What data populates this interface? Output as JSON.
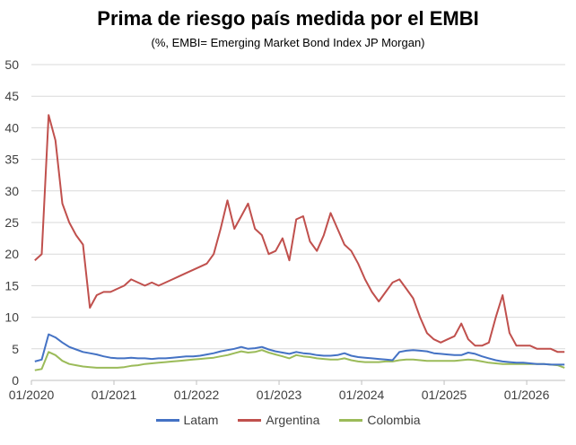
{
  "chart_data": {
    "type": "line",
    "title": "Prima de riesgo país medida por el EMBI",
    "subtitle": "(%, EMBI= Emerging Market Bond Index JP Morgan)",
    "xlabel": "",
    "ylabel": "",
    "ylim": [
      0,
      50
    ],
    "y_ticks": [
      "0",
      "5",
      "10",
      "15",
      "20",
      "25",
      "30",
      "35",
      "40",
      "45",
      "50"
    ],
    "x_ticks": [
      "01/2020",
      "01/2021",
      "01/2022",
      "01/2023",
      "01/2024",
      "01/2025",
      "01/2026"
    ],
    "grid": true,
    "legend_position": "bottom",
    "x_dates": [
      "2020-01",
      "2020-02",
      "2020-03",
      "2020-04",
      "2020-05",
      "2020-06",
      "2020-07",
      "2020-08",
      "2020-09",
      "2020-10",
      "2020-11",
      "2020-12",
      "2021-01",
      "2021-02",
      "2021-03",
      "2021-04",
      "2021-05",
      "2021-06",
      "2021-07",
      "2021-08",
      "2021-09",
      "2021-10",
      "2021-11",
      "2021-12",
      "2022-01",
      "2022-02",
      "2022-03",
      "2022-04",
      "2022-05",
      "2022-06",
      "2022-07",
      "2022-08",
      "2022-09",
      "2022-10",
      "2022-11",
      "2022-12",
      "2023-01",
      "2023-02",
      "2023-03",
      "2023-04",
      "2023-05",
      "2023-06",
      "2023-07",
      "2023-08",
      "2023-09",
      "2023-10",
      "2023-11",
      "2023-12",
      "2024-01",
      "2024-02",
      "2024-03",
      "2024-04",
      "2024-05",
      "2024-06",
      "2024-07",
      "2024-08",
      "2024-09",
      "2024-10",
      "2024-11",
      "2024-12",
      "2025-01",
      "2025-02",
      "2025-03",
      "2025-04",
      "2025-05",
      "2025-06",
      "2025-07",
      "2025-08",
      "2025-09",
      "2025-10",
      "2025-11",
      "2025-12",
      "2026-01",
      "2026-02",
      "2026-03",
      "2026-04",
      "2026-05",
      "2026-06"
    ],
    "series": [
      {
        "name": "Latam",
        "color": "#4472C4",
        "values": [
          3.0,
          3.3,
          7.3,
          6.8,
          6.0,
          5.3,
          4.9,
          4.5,
          4.3,
          4.1,
          3.8,
          3.6,
          3.5,
          3.5,
          3.6,
          3.5,
          3.5,
          3.4,
          3.5,
          3.5,
          3.6,
          3.7,
          3.8,
          3.8,
          3.9,
          4.1,
          4.3,
          4.6,
          4.8,
          5.0,
          5.3,
          5.0,
          5.1,
          5.3,
          4.9,
          4.6,
          4.4,
          4.2,
          4.5,
          4.3,
          4.2,
          4.0,
          3.9,
          3.9,
          4.0,
          4.3,
          3.9,
          3.7,
          3.6,
          3.5,
          3.4,
          3.3,
          3.2,
          4.5,
          4.7,
          4.8,
          4.7,
          4.6,
          4.3,
          4.2,
          4.1,
          4.0,
          4.0,
          4.4,
          4.2,
          3.8,
          3.5,
          3.2,
          3.0,
          2.9,
          2.8,
          2.8,
          2.7,
          2.6,
          2.6,
          2.5,
          2.5,
          2.5
        ]
      },
      {
        "name": "Argentina",
        "color": "#C0504D",
        "values": [
          19.0,
          20.0,
          42.0,
          38.0,
          28.0,
          25.0,
          23.0,
          21.5,
          11.5,
          13.5,
          14.0,
          14.0,
          14.5,
          15.0,
          16.0,
          15.5,
          15.0,
          15.5,
          15.0,
          15.5,
          16.0,
          16.5,
          17.0,
          17.5,
          18.0,
          18.5,
          20.0,
          24.0,
          28.5,
          24.0,
          26.0,
          28.0,
          24.0,
          23.0,
          20.0,
          20.5,
          22.5,
          19.0,
          25.5,
          26.0,
          22.0,
          20.5,
          23.0,
          26.5,
          24.0,
          21.5,
          20.5,
          18.5,
          16.0,
          14.0,
          12.5,
          14.0,
          15.5,
          16.0,
          14.5,
          13.0,
          10.0,
          7.5,
          6.5,
          6.0,
          6.5,
          7.0,
          9.0,
          6.5,
          5.5,
          5.5,
          6.0,
          10.0,
          13.5,
          7.5,
          5.5,
          5.5,
          5.5,
          5.0,
          5.0,
          5.0,
          4.5,
          4.5
        ]
      },
      {
        "name": "Colombia",
        "color": "#9BBB59",
        "values": [
          1.6,
          1.8,
          4.5,
          4.0,
          3.1,
          2.6,
          2.4,
          2.2,
          2.1,
          2.0,
          2.0,
          2.0,
          2.0,
          2.1,
          2.3,
          2.4,
          2.6,
          2.7,
          2.8,
          2.9,
          3.0,
          3.1,
          3.2,
          3.3,
          3.4,
          3.5,
          3.6,
          3.8,
          4.0,
          4.3,
          4.6,
          4.4,
          4.5,
          4.8,
          4.4,
          4.1,
          3.8,
          3.5,
          4.0,
          3.8,
          3.7,
          3.5,
          3.4,
          3.3,
          3.3,
          3.5,
          3.2,
          3.0,
          2.9,
          2.9,
          2.9,
          3.0,
          3.0,
          3.2,
          3.3,
          3.3,
          3.2,
          3.1,
          3.1,
          3.1,
          3.1,
          3.1,
          3.2,
          3.3,
          3.2,
          3.0,
          2.8,
          2.7,
          2.6,
          2.6,
          2.6,
          2.6,
          2.6,
          2.6,
          2.6,
          2.5,
          2.4,
          2.0
        ]
      }
    ]
  }
}
